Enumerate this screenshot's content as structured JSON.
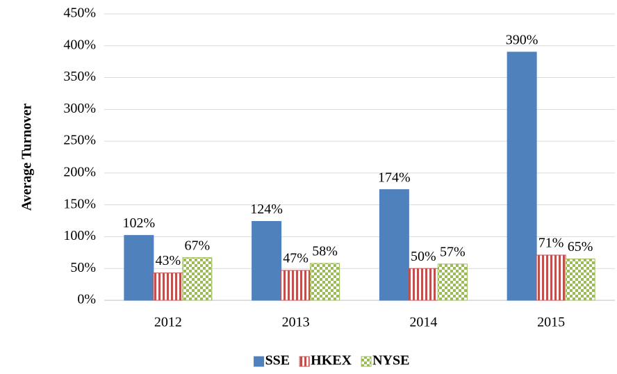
{
  "chart_data": {
    "type": "bar",
    "y_label": "Average Turnover",
    "categories": [
      "2012",
      "2013",
      "2014",
      "2015"
    ],
    "series": [
      {
        "name": "SSE",
        "color": "#4f81bd",
        "pattern": "solid",
        "values": [
          102,
          124,
          174,
          390
        ],
        "value_labels": [
          "102%",
          "124%",
          "174%",
          "390%"
        ]
      },
      {
        "name": "HKEX",
        "color": "#c0504d",
        "pattern": "vertical-stripes",
        "values": [
          43,
          47,
          50,
          71
        ],
        "value_labels": [
          "43%",
          "47%",
          "50%",
          "71%"
        ]
      },
      {
        "name": "NYSE",
        "color": "#9bbb59",
        "pattern": "checker",
        "values": [
          67,
          58,
          57,
          65
        ],
        "value_labels": [
          "67%",
          "58%",
          "57%",
          "65%"
        ]
      }
    ],
    "ylim": [
      0,
      450
    ],
    "yticks": [
      {
        "value": 0,
        "label": "0%"
      },
      {
        "value": 50,
        "label": "50%"
      },
      {
        "value": 100,
        "label": "100%"
      },
      {
        "value": 150,
        "label": "150%"
      },
      {
        "value": 200,
        "label": "200%"
      },
      {
        "value": 250,
        "label": "250%"
      },
      {
        "value": 300,
        "label": "300%"
      },
      {
        "value": 350,
        "label": "350%"
      },
      {
        "value": 400,
        "label": "400%"
      },
      {
        "value": 450,
        "label": "450%"
      }
    ],
    "grid": true,
    "legend": "bottom"
  }
}
